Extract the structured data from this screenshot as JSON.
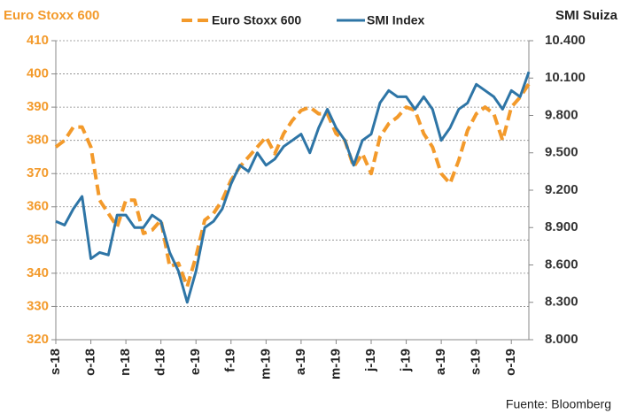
{
  "chart_data": {
    "type": "line",
    "y_label": "Euro Stoxx 600",
    "y2_label": "SMI Suiza",
    "source": "Fuente: Bloomberg",
    "x": [
      0,
      0.25,
      0.5,
      0.75,
      1,
      1.25,
      1.5,
      1.75,
      2,
      2.25,
      2.5,
      2.75,
      3,
      3.25,
      3.5,
      3.75,
      4,
      4.25,
      4.5,
      4.75,
      5,
      5.25,
      5.5,
      5.75,
      6,
      6.25,
      6.5,
      6.75,
      7,
      7.25,
      7.5,
      7.75,
      8,
      8.25,
      8.5,
      8.75,
      9,
      9.25,
      9.5,
      9.75,
      10,
      10.25,
      10.5,
      10.75,
      11,
      11.25,
      11.5,
      11.75,
      12,
      12.25,
      12.5,
      12.75,
      13,
      13.25,
      13.5
    ],
    "xlim": [
      0,
      13.5
    ],
    "xticks": [
      {
        "value": 0,
        "label": "s-18"
      },
      {
        "value": 1,
        "label": "o-18"
      },
      {
        "value": 2,
        "label": "n-18"
      },
      {
        "value": 3,
        "label": "d-18"
      },
      {
        "value": 4,
        "label": "e-19"
      },
      {
        "value": 5,
        "label": "f-19"
      },
      {
        "value": 6,
        "label": "m-19"
      },
      {
        "value": 7,
        "label": "a-19"
      },
      {
        "value": 8,
        "label": "m-19"
      },
      {
        "value": 9,
        "label": "j-19"
      },
      {
        "value": 10,
        "label": "j-19"
      },
      {
        "value": 11,
        "label": "a-19"
      },
      {
        "value": 12,
        "label": "s-19"
      },
      {
        "value": 13,
        "label": "o-19"
      }
    ],
    "ylim": [
      320,
      410
    ],
    "yticks": [
      320,
      330,
      340,
      350,
      360,
      370,
      380,
      390,
      400,
      410
    ],
    "y2lim": [
      8000,
      10400
    ],
    "y2ticks": [
      {
        "value": 8000,
        "label": "8.000"
      },
      {
        "value": 8300,
        "label": "8.300"
      },
      {
        "value": 8600,
        "label": "8.600"
      },
      {
        "value": 8900,
        "label": "8.900"
      },
      {
        "value": 9200,
        "label": "9.200"
      },
      {
        "value": 9500,
        "label": "9.500"
      },
      {
        "value": 9800,
        "label": "9.800"
      },
      {
        "value": 10100,
        "label": "10.100"
      },
      {
        "value": 10400,
        "label": "10.400"
      }
    ],
    "grid": true,
    "series": [
      {
        "name": "Euro Stoxx 600",
        "color": "#f39a2b",
        "dashed": true,
        "values": [
          378,
          380,
          384,
          384,
          378,
          362,
          358,
          354,
          362,
          362,
          352,
          353,
          356,
          342,
          343,
          336,
          345,
          356,
          358,
          362,
          368,
          372,
          375,
          378,
          381,
          376,
          382,
          386,
          389,
          390,
          388,
          388,
          382,
          380,
          372,
          376,
          370,
          381,
          385,
          387,
          390,
          389,
          382,
          378,
          370,
          367,
          374,
          383,
          388,
          390,
          388,
          380,
          390,
          393,
          397
        ]
      },
      {
        "name": "SMI Index",
        "color": "#2e75a6",
        "axis": "y2",
        "values": [
          8950,
          8920,
          9050,
          9150,
          8650,
          8700,
          8680,
          9000,
          9000,
          8900,
          8900,
          9000,
          8950,
          8700,
          8550,
          8300,
          8550,
          8900,
          8950,
          9050,
          9250,
          9400,
          9350,
          9500,
          9400,
          9450,
          9550,
          9600,
          9650,
          9500,
          9700,
          9850,
          9700,
          9600,
          9400,
          9600,
          9650,
          9900,
          10000,
          9950,
          9950,
          9850,
          9950,
          9850,
          9600,
          9700,
          9850,
          9900,
          10050,
          10000,
          9950,
          9850,
          10000,
          9950,
          10150
        ]
      }
    ]
  }
}
